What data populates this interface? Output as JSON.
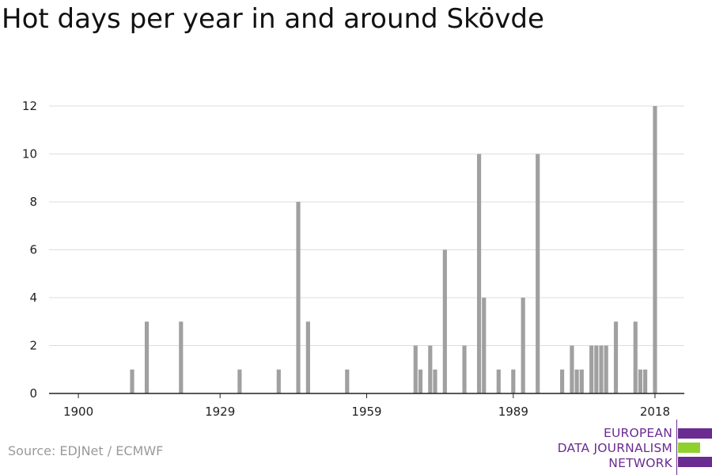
{
  "title": "Hot days per year in and around Skövde",
  "source": "Source: EDJNet / ECMWF",
  "logo": {
    "lines": [
      "EUROPEAN",
      "DATA JOURNALISM",
      "NETWORK"
    ],
    "colors": {
      "purple": "#6a2c91",
      "green": "#8ed12f"
    }
  },
  "colors": {
    "bar": "#a0a0a0",
    "grid": "#dddddd",
    "axis": "#222222",
    "text": "#222222"
  },
  "chart_data": {
    "type": "bar",
    "title": "Hot days per year in and around Skövde",
    "xlabel": "",
    "ylabel": "",
    "xlim": [
      1894,
      2024
    ],
    "ylim": [
      0,
      12
    ],
    "yticks": [
      0,
      2,
      4,
      6,
      8,
      10,
      12
    ],
    "xticks": [
      1900,
      1929,
      1959,
      1989,
      2018
    ],
    "grid": true,
    "x": [
      1911,
      1914,
      1921,
      1933,
      1941,
      1945,
      1947,
      1955,
      1969,
      1970,
      1972,
      1973,
      1975,
      1979,
      1982,
      1983,
      1986,
      1989,
      1991,
      1994,
      1999,
      2001,
      2002,
      2003,
      2005,
      2006,
      2007,
      2008,
      2010,
      2014,
      2015,
      2016,
      2018
    ],
    "values": [
      1,
      3,
      3,
      1,
      1,
      8,
      3,
      1,
      2,
      1,
      2,
      1,
      6,
      2,
      10,
      4,
      1,
      1,
      4,
      10,
      1,
      2,
      1,
      1,
      2,
      2,
      2,
      2,
      3,
      3,
      1,
      1,
      12
    ]
  }
}
